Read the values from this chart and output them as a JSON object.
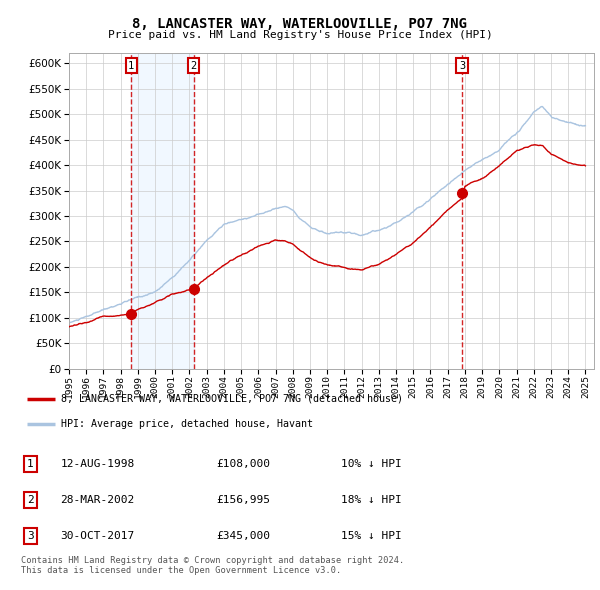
{
  "title": "8, LANCASTER WAY, WATERLOOVILLE, PO7 7NG",
  "subtitle": "Price paid vs. HM Land Registry's House Price Index (HPI)",
  "legend_property": "8, LANCASTER WAY, WATERLOOVILLE, PO7 7NG (detached house)",
  "legend_hpi": "HPI: Average price, detached house, Havant",
  "sale1_date": "12-AUG-1998",
  "sale1_price": 108000,
  "sale1_pct": "10% ↓ HPI",
  "sale2_date": "28-MAR-2002",
  "sale2_price": 156995,
  "sale2_pct": "18% ↓ HPI",
  "sale3_date": "30-OCT-2017",
  "sale3_price": 345000,
  "sale3_pct": "15% ↓ HPI",
  "footer": "Contains HM Land Registry data © Crown copyright and database right 2024.\nThis data is licensed under the Open Government Licence v3.0.",
  "hpi_color": "#aac4e0",
  "property_color": "#cc0000",
  "sale_marker_color": "#cc0000",
  "dashed_color": "#cc0000",
  "bg_shade_color": "#ddeeff",
  "ylim_min": 0,
  "ylim_max": 620000,
  "year_start": 1995,
  "year_end": 2025,
  "sale1_year": 1998.62,
  "sale2_year": 2002.24,
  "sale3_year": 2017.83
}
